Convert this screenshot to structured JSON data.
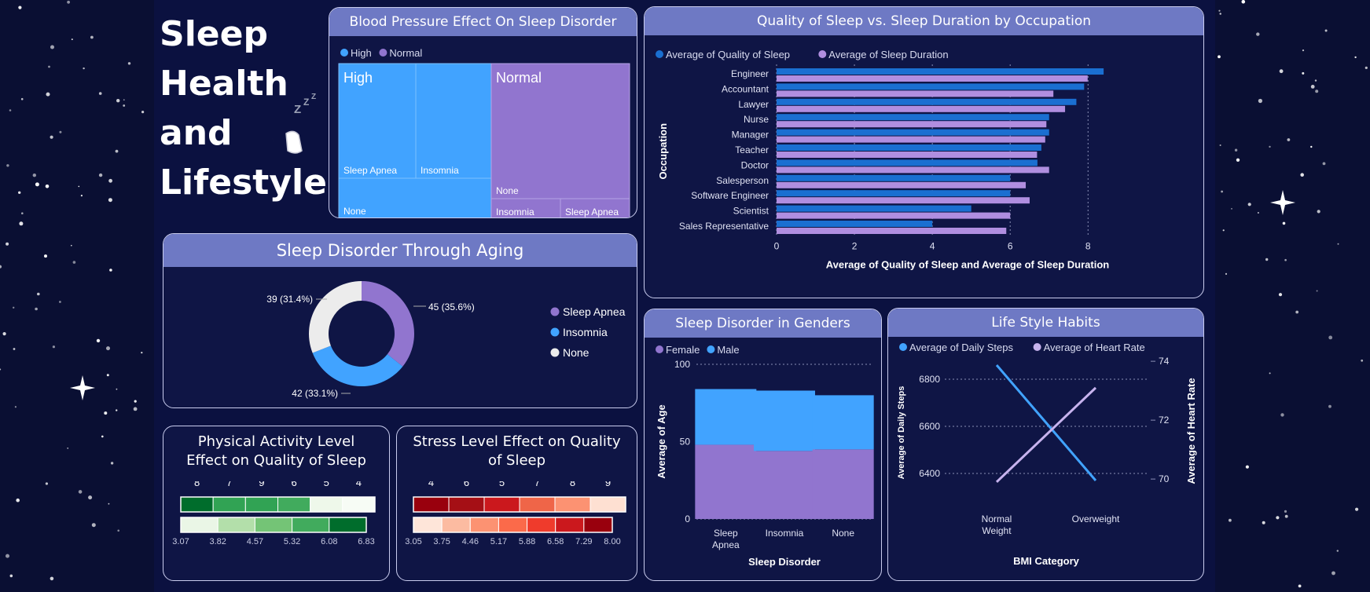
{
  "dashboard": {
    "title_lines": [
      "Sleep",
      "Health",
      "and",
      "Lifestyle"
    ],
    "moon_icon": "sleeping-moon-icon",
    "colors": {
      "background": "#0a0f33",
      "card": "#0f1545",
      "header": "#6e79c4",
      "blue": "#41a3ff",
      "purple": "#9175cf",
      "dark_blue": "#1a6fd1",
      "lavender": "#b08ee0",
      "white_slice": "#ececec"
    }
  },
  "chart_data": [
    {
      "id": "bp",
      "type": "treemap",
      "title": "Blood Pressure Effect On Sleep Disorder",
      "legend": [
        "High",
        "Normal"
      ],
      "groups": [
        {
          "name": "High",
          "children": [
            "Sleep Apnea",
            "Insomnia",
            "None"
          ]
        },
        {
          "name": "Normal",
          "children": [
            "None",
            "Insomnia",
            "Sleep Apnea"
          ]
        }
      ]
    },
    {
      "id": "occupation",
      "type": "bar",
      "orientation": "horizontal",
      "title": "Quality of Sleep vs. Sleep Duration by Occupation",
      "legend": [
        "Average of Quality of Sleep",
        "Average of Sleep Duration"
      ],
      "categories": [
        "Engineer",
        "Accountant",
        "Lawyer",
        "Nurse",
        "Manager",
        "Teacher",
        "Doctor",
        "Salesperson",
        "Software Engineer",
        "Scientist",
        "Sales Representative"
      ],
      "series": [
        {
          "name": "Average of Quality of Sleep",
          "values": [
            8.4,
            7.9,
            7.7,
            7.0,
            7.0,
            6.8,
            6.7,
            6.0,
            6.0,
            5.0,
            4.0
          ]
        },
        {
          "name": "Average of Sleep Duration",
          "values": [
            7.99,
            7.11,
            7.41,
            6.93,
            6.9,
            6.69,
            7.0,
            6.4,
            6.5,
            6.0,
            5.9
          ]
        }
      ],
      "xlabel": "Average of Quality of Sleep and Average of Sleep Duration",
      "ylabel": "Occupation",
      "xticks": [
        0,
        2,
        4,
        6,
        8
      ],
      "xlim": [
        0,
        8.6
      ]
    },
    {
      "id": "aging",
      "type": "pie",
      "title": "Sleep Disorder Through Aging",
      "slices": [
        {
          "name": "Sleep Apnea",
          "value": 45,
          "label": "45 (35.6%)"
        },
        {
          "name": "Insomnia",
          "value": 42,
          "label": "42 (33.1%)"
        },
        {
          "name": "None",
          "value": 39,
          "label": "39 (31.4%)"
        }
      ]
    },
    {
      "id": "gender",
      "type": "bar",
      "stacked": true,
      "title": "Sleep Disorder in Genders",
      "legend": [
        "Female",
        "Male"
      ],
      "categories": [
        "Sleep Apnea",
        "Insomnia",
        "None"
      ],
      "category_lines": [
        [
          "Sleep",
          "Apnea"
        ],
        [
          "Insomnia"
        ],
        [
          "None"
        ]
      ],
      "series": [
        {
          "name": "Female",
          "values": [
            48,
            44,
            45
          ]
        },
        {
          "name": "Male",
          "values": [
            36,
            39,
            35
          ]
        }
      ],
      "xlabel": "Sleep Disorder",
      "ylabel": "Average of Age",
      "yticks": [
        0,
        50,
        100
      ],
      "ylim": [
        0,
        100
      ]
    },
    {
      "id": "lifestyle",
      "type": "line",
      "title": "Life Style Habits",
      "legend": [
        "Average of Daily Steps",
        "Average of Heart Rate"
      ],
      "categories": [
        "Normal Weight",
        "Overweight"
      ],
      "category_lines": [
        [
          "Normal",
          "Weight"
        ],
        [
          "Overweight"
        ]
      ],
      "series": [
        {
          "name": "Average of Daily Steps",
          "values": [
            6860,
            6370
          ],
          "axis": "left"
        },
        {
          "name": "Average of Heart Rate",
          "values": [
            69.9,
            73.1
          ],
          "axis": "right"
        }
      ],
      "xlabel": "BMI Category",
      "ylabel": "Average of Daily Steps",
      "y2label": "Average of Heart Rate",
      "yticks": [
        6400,
        6600,
        6800
      ],
      "y2ticks": [
        70,
        72,
        74
      ],
      "ylim": [
        6320,
        6920
      ],
      "y2lim": [
        69.55,
        74.35
      ]
    },
    {
      "id": "physical",
      "type": "heatmap",
      "title": "Physical Activity Level Effect on Quality of Sleep",
      "categories": [
        "8",
        "7",
        "9",
        "6",
        "5",
        "4"
      ],
      "legend_values": [
        "3.07",
        "3.82",
        "4.57",
        "5.32",
        "6.08",
        "6.83"
      ],
      "row_colors": [
        "#006d2c",
        "#31a354",
        "#31a354",
        "#41ab5d",
        "#eef8ea",
        "#f7fcf5"
      ],
      "scale_colors": [
        "#eaf6e6",
        "#b3dfaa",
        "#74c476",
        "#41ab5d",
        "#006d2c"
      ]
    },
    {
      "id": "stress",
      "type": "heatmap",
      "title": "Stress Level Effect on Quality of Sleep",
      "categories": [
        "4",
        "6",
        "5",
        "7",
        "8",
        "9"
      ],
      "legend_values": [
        "3.05",
        "3.75",
        "4.46",
        "5.17",
        "5.88",
        "6.58",
        "7.29",
        "8.00"
      ],
      "row_colors": [
        "#99000d",
        "#a50f15",
        "#cb181d",
        "#ef6548",
        "#fc9272",
        "#fee0d2"
      ],
      "scale_colors": [
        "#fee5d9",
        "#fcbba1",
        "#fc9272",
        "#fb6a4a",
        "#ef3b2c",
        "#cb181d",
        "#99000d"
      ]
    }
  ]
}
